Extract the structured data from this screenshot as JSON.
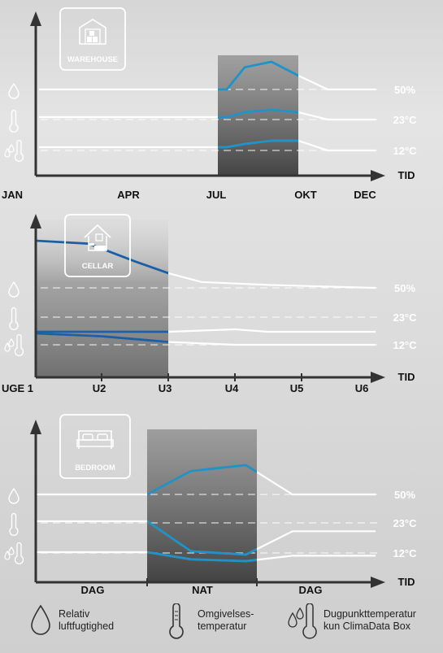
{
  "colors": {
    "accent": "#1f93c8",
    "dark_accent": "#1a5fa8",
    "line": "#ffffff",
    "axis": "#333333",
    "label": "#ffffff",
    "text": "#111111"
  },
  "chart_data": [
    {
      "type": "line",
      "badge": "WAREHOUSE",
      "icon": "warehouse-icon",
      "categories": [
        "JAN",
        "APR",
        "JUL",
        "OKT",
        "DEC"
      ],
      "axis_label": "TID",
      "reference_labels": [
        "50%",
        "23°C",
        "12°C"
      ],
      "row_icons": [
        "droplet-icon",
        "thermometer-icon",
        "dewpoint-icon"
      ],
      "highlight": {
        "from": 2.0,
        "to": 2.9
      },
      "series": [
        {
          "values": [
            [
              0,
              50
            ],
            [
              2.1,
              50
            ],
            [
              2.3,
              58
            ],
            [
              2.6,
              60
            ],
            [
              2.9,
              55
            ],
            [
              3.3,
              50
            ],
            [
              4.2,
              50
            ]
          ]
        },
        {
          "values": [
            [
              0,
              23
            ],
            [
              2.1,
              23
            ],
            [
              2.3,
              25
            ],
            [
              2.6,
              26
            ],
            [
              2.9,
              25
            ],
            [
              3.3,
              22
            ],
            [
              4.2,
              22
            ]
          ]
        },
        {
          "values": [
            [
              0,
              12
            ],
            [
              2.1,
              12
            ],
            [
              2.3,
              13
            ],
            [
              2.6,
              14
            ],
            [
              2.9,
              14
            ],
            [
              3.3,
              11
            ],
            [
              4.2,
              11
            ]
          ]
        }
      ]
    },
    {
      "type": "line",
      "badge": "CELLAR",
      "icon": "cellar-icon",
      "categories": [
        "UGE 1",
        "U2",
        "U3",
        "U4",
        "U5",
        "U6"
      ],
      "axis_label": "TID",
      "reference_labels": [
        "50%",
        "23°C",
        "12°C"
      ],
      "row_icons": [
        "droplet-icon",
        "thermometer-icon",
        "dewpoint-icon"
      ],
      "highlight": {
        "from": 0,
        "to": 2.0
      },
      "series": [
        {
          "values": [
            [
              0,
              66
            ],
            [
              0.8,
              65
            ],
            [
              1.5,
              59
            ],
            [
              2.0,
              55
            ],
            [
              2.5,
              52
            ],
            [
              3.5,
              51
            ],
            [
              5,
              50
            ]
          ]
        },
        {
          "values": [
            [
              0,
              16
            ],
            [
              1,
              16
            ],
            [
              2,
              16
            ],
            [
              3,
              16.5
            ],
            [
              3.5,
              16
            ],
            [
              5,
              16
            ]
          ]
        },
        {
          "values": [
            [
              0,
              16
            ],
            [
              1,
              15
            ],
            [
              2,
              13
            ],
            [
              3,
              12
            ],
            [
              4,
              12
            ],
            [
              5,
              12
            ]
          ]
        }
      ]
    },
    {
      "type": "line",
      "badge": "BEDROOM",
      "icon": "bedroom-icon",
      "categories": [
        "DAG",
        "NAT",
        "DAG"
      ],
      "axis_label": "TID",
      "reference_labels": [
        "50%",
        "23°C",
        "12°C"
      ],
      "row_icons": [
        "droplet-icon",
        "thermometer-icon",
        "dewpoint-icon"
      ],
      "highlight": {
        "from": 1.0,
        "to": 2.0
      },
      "series": [
        {
          "values": [
            [
              0,
              50
            ],
            [
              1,
              50
            ],
            [
              1.4,
              58
            ],
            [
              1.9,
              60
            ],
            [
              2.3,
              50
            ],
            [
              3,
              50
            ]
          ]
        },
        {
          "values": [
            [
              0,
              23
            ],
            [
              1,
              23
            ],
            [
              1.4,
              14
            ],
            [
              1.9,
              13
            ],
            [
              2.3,
              20
            ],
            [
              3,
              20
            ]
          ]
        },
        {
          "values": [
            [
              0,
              12
            ],
            [
              1,
              12
            ],
            [
              1.4,
              10
            ],
            [
              1.9,
              9.5
            ],
            [
              2.3,
              11
            ],
            [
              3,
              11
            ]
          ]
        }
      ]
    }
  ],
  "legend": [
    {
      "icon": "droplet-icon",
      "line1": "Relativ",
      "line2": "luftfugtighed"
    },
    {
      "icon": "thermometer-icon",
      "line1": "Omgivelses-",
      "line2": "temperatur"
    },
    {
      "icon": "dewpoint-icon",
      "line1": "Dugpunkttemperatur",
      "line2": "kun ClimaData Box"
    }
  ]
}
